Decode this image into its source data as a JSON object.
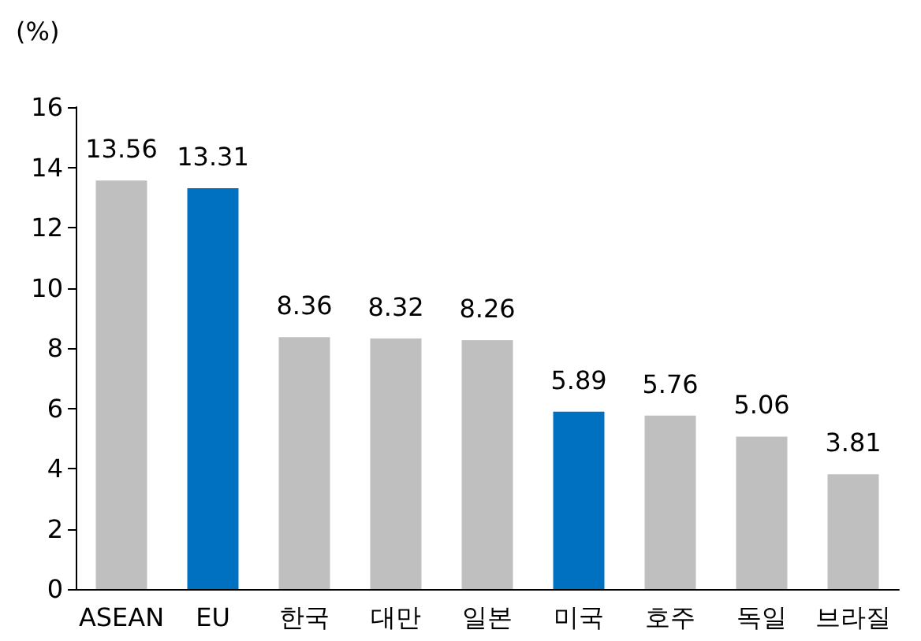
{
  "chart_data": {
    "type": "bar",
    "ylabel": "(%)",
    "categories": [
      "ASEAN",
      "EU",
      "한국",
      "대만",
      "일본",
      "미국",
      "호주",
      "독일",
      "브라질"
    ],
    "values": [
      13.56,
      13.31,
      8.36,
      8.32,
      8.26,
      5.89,
      5.76,
      5.06,
      3.81
    ],
    "colors": [
      "#bfbfbf",
      "#0070c0",
      "#bfbfbf",
      "#bfbfbf",
      "#bfbfbf",
      "#0070c0",
      "#bfbfbf",
      "#bfbfbf",
      "#bfbfbf"
    ],
    "ylim": [
      0,
      16
    ],
    "yticks": [
      0,
      2,
      4,
      6,
      8,
      10,
      12,
      14,
      16
    ],
    "data_labels": true,
    "grid": false
  }
}
